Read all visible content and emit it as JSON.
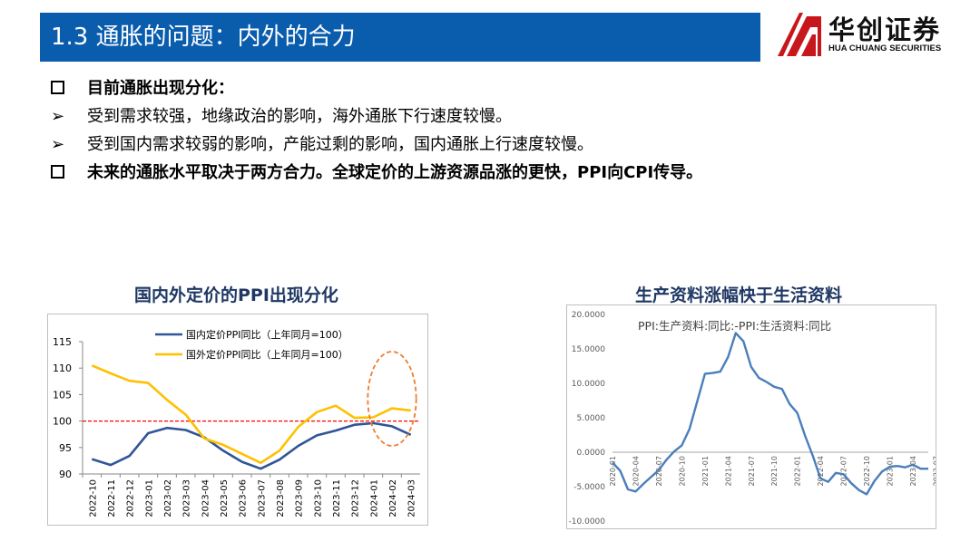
{
  "header": {
    "title": "1.3 通胀的问题：内外的合力"
  },
  "logo": {
    "name_cn": "华创证券",
    "name_en": "HUA CHUANG SECURITIES",
    "color": "#c8161d"
  },
  "bullets": [
    {
      "marker": "square",
      "text": "目前通胀出现分化：",
      "bold": true
    },
    {
      "marker": "arrow",
      "text": "受到需求较强，地缘政治的影响，海外通胀下行速度较慢。",
      "bold": false
    },
    {
      "marker": "arrow",
      "text": "受到国内需求较弱的影响，产能过剩的影响，国内通胀上行速度较慢。",
      "bold": false
    },
    {
      "marker": "square",
      "text": "未来的通胀水平取决于两方合力。全球定价的上游资源品涨的更快，PPI向CPI传导。",
      "bold": true
    }
  ],
  "markers": {
    "arrow": "➢"
  },
  "chart_data": [
    {
      "type": "line",
      "title": "国内外定价的PPI出现分化",
      "categories": [
        "2022-10",
        "2022-11",
        "2022-12",
        "2023-01",
        "2023-02",
        "2023-03",
        "2023-04",
        "2023-05",
        "2023-06",
        "2023-07",
        "2023-08",
        "2023-09",
        "2023-10",
        "2023-11",
        "2023-12",
        "2024-01",
        "2024-02",
        "2024-03"
      ],
      "series": [
        {
          "name": "国内定价PPI同比（上年同月=100）",
          "color": "#2f5597",
          "values": [
            92.8,
            91.7,
            93.4,
            97.7,
            98.7,
            98.3,
            96.9,
            94.4,
            92.3,
            91.0,
            92.7,
            95.3,
            97.3,
            98.2,
            99.3,
            99.6,
            99.0,
            97.4
          ]
        },
        {
          "name": "国外定价PPI同比（上年同月=100）",
          "color": "#ffc000",
          "values": [
            110.5,
            109.0,
            107.6,
            107.2,
            104.0,
            101.2,
            96.7,
            95.5,
            93.8,
            92.1,
            94.4,
            98.9,
            101.7,
            102.9,
            100.6,
            100.7,
            102.4,
            102.0
          ]
        }
      ],
      "reference_line": {
        "value": 100,
        "color": "#ff0000",
        "style": "dashed"
      },
      "yticks": [
        "115",
        "110",
        "105",
        "100",
        "95",
        "90"
      ],
      "ylim": [
        90,
        115
      ],
      "highlight": {
        "categories": [
          "2024-01",
          "2024-03"
        ],
        "color": "#ed7d31",
        "style": "dashed-ellipse"
      },
      "legend": "top"
    },
    {
      "type": "line",
      "title": "生产资料涨幅快于生活资料",
      "series": [
        {
          "name": "PPI:生产资料:同比:-PPI:生活资料:同比",
          "color": "#4a7ebb",
          "values": [
            -1.5,
            -2.7,
            -5.4,
            -5.7,
            -4.6,
            -3.6,
            -2.6,
            -1.1,
            0.1,
            1.0,
            3.4,
            7.4,
            11.4,
            11.5,
            11.7,
            13.8,
            17.3,
            16.1,
            12.4,
            10.8,
            10.2,
            9.5,
            9.2,
            7.0,
            5.7,
            2.4,
            -0.5,
            -3.8,
            -4.3,
            -3.0,
            -3.2,
            -4.5,
            -5.5,
            -6.1,
            -4.2,
            -2.8,
            -2.1,
            -2.0,
            -2.2,
            -1.8,
            -2.4,
            -2.4
          ]
        }
      ],
      "x_labels": [
        "2020-01",
        "2020-04",
        "2020-07",
        "2020-10",
        "2021-01",
        "2021-04",
        "2021-07",
        "2021-10",
        "2022-01",
        "2022-04",
        "2022-07",
        "2022-10",
        "2023-01",
        "2023-04",
        "2023-07",
        "2023-10",
        "2024-01"
      ],
      "yticks": [
        "20.0000",
        "15.0000",
        "10.0000",
        "5.0000",
        "0.0000",
        "-5.0000",
        "-10.0000"
      ],
      "ylim": [
        -10,
        20
      ],
      "legend": "top-left"
    }
  ]
}
